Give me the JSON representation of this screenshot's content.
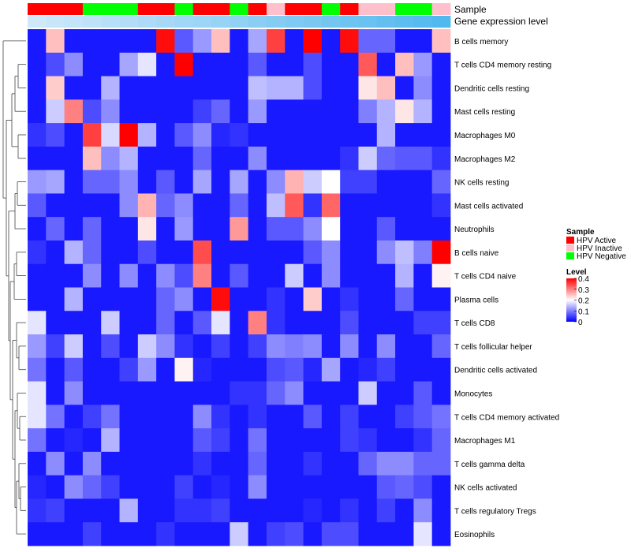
{
  "chart_data": {
    "type": "heatmap",
    "annotation_tracks": [
      "Sample",
      "Gene expression level"
    ],
    "rows": [
      "B cells memory",
      "T cells CD4 memory resting",
      "Dendritic cells resting",
      "Mast cells resting",
      "Macrophages M0",
      "Macrophages M2",
      "NK cells resting",
      "Mast cells activated",
      "Neutrophils",
      "B cells naive",
      "T cells CD4 naive",
      "Plasma cells",
      "T cells CD8",
      "T cells follicular helper",
      "Dendritic cells activated",
      "Monocytes",
      "T cells CD4 memory activated",
      "Macrophages M1",
      "T cells gamma delta",
      "NK cells activated",
      "T cells regulatory  Tregs",
      "Eosinophils"
    ],
    "sample_groups": [
      "Active",
      "Active",
      "Active",
      "Negative",
      "Negative",
      "Negative",
      "Active",
      "Active",
      "Negative",
      "Active",
      "Active",
      "Negative",
      "Active",
      "Inactive",
      "Active",
      "Active",
      "Negative",
      "Active",
      "Inactive",
      "Inactive",
      "Negative",
      "Negative",
      "Inactive"
    ],
    "expression_track": [
      0.5,
      0.52,
      0.54,
      0.56,
      0.58,
      0.6,
      0.62,
      0.64,
      0.66,
      0.68,
      0.7,
      0.72,
      0.74,
      0.76,
      0.78,
      0.8,
      0.82,
      0.84,
      0.86,
      0.88,
      0.9,
      0.92,
      0.94
    ],
    "values": [
      [
        0.02,
        0.25,
        0.02,
        0.02,
        0.02,
        0.02,
        0.02,
        0.39,
        0.07,
        0.12,
        0.25,
        0.02,
        0.13,
        0.35,
        0.02,
        0.4,
        0.02,
        0.39,
        0.08,
        0.08,
        0.02,
        0.02,
        0.25
      ],
      [
        0.02,
        0.06,
        0.11,
        0.02,
        0.02,
        0.13,
        0.18,
        0.02,
        0.4,
        0.02,
        0.02,
        0.02,
        0.07,
        0.02,
        0.02,
        0.06,
        0.02,
        0.02,
        0.33,
        0.02,
        0.25,
        0.12,
        0.02
      ],
      [
        0.02,
        0.24,
        0.02,
        0.02,
        0.14,
        0.02,
        0.02,
        0.02,
        0.02,
        0.02,
        0.02,
        0.02,
        0.15,
        0.14,
        0.14,
        0.06,
        0.02,
        0.02,
        0.22,
        0.25,
        0.02,
        0.11,
        0.02
      ],
      [
        0.02,
        0.16,
        0.3,
        0.06,
        0.11,
        0.02,
        0.02,
        0.02,
        0.02,
        0.05,
        0.08,
        0.02,
        0.12,
        0.02,
        0.02,
        0.02,
        0.02,
        0.02,
        0.1,
        0.14,
        0.22,
        0.14,
        0.02
      ],
      [
        0.04,
        0.06,
        0.02,
        0.35,
        0.17,
        0.4,
        0.14,
        0.02,
        0.07,
        0.11,
        0.03,
        0.04,
        0.02,
        0.02,
        0.02,
        0.02,
        0.02,
        0.02,
        0.02,
        0.14,
        0.02,
        0.02,
        0.02
      ],
      [
        0.02,
        0.02,
        0.02,
        0.25,
        0.11,
        0.14,
        0.02,
        0.02,
        0.02,
        0.08,
        0.02,
        0.02,
        0.11,
        0.02,
        0.02,
        0.02,
        0.02,
        0.04,
        0.16,
        0.08,
        0.07,
        0.07,
        0.04
      ],
      [
        0.12,
        0.13,
        0.02,
        0.08,
        0.08,
        0.11,
        0.02,
        0.07,
        0.02,
        0.13,
        0.02,
        0.13,
        0.02,
        0.11,
        0.26,
        0.16,
        0.2,
        0.05,
        0.05,
        0.02,
        0.02,
        0.02,
        0.08
      ],
      [
        0.07,
        0.02,
        0.02,
        0.02,
        0.02,
        0.11,
        0.26,
        0.08,
        0.11,
        0.02,
        0.02,
        0.08,
        0.02,
        0.15,
        0.33,
        0.04,
        0.32,
        0.02,
        0.02,
        0.02,
        0.02,
        0.02,
        0.04
      ],
      [
        0.02,
        0.08,
        0.02,
        0.08,
        0.02,
        0.02,
        0.22,
        0.02,
        0.12,
        0.02,
        0.02,
        0.28,
        0.02,
        0.07,
        0.07,
        0.11,
        0.2,
        0.02,
        0.02,
        0.07,
        0.02,
        0.02,
        0.02
      ],
      [
        0.04,
        0.02,
        0.14,
        0.08,
        0.02,
        0.02,
        0.06,
        0.02,
        0.02,
        0.34,
        0.02,
        0.02,
        0.02,
        0.02,
        0.02,
        0.07,
        0.11,
        0.02,
        0.02,
        0.11,
        0.15,
        0.1,
        0.4
      ],
      [
        0.02,
        0.02,
        0.02,
        0.11,
        0.02,
        0.11,
        0.02,
        0.11,
        0.06,
        0.3,
        0.02,
        0.07,
        0.02,
        0.02,
        0.16,
        0.02,
        0.11,
        0.02,
        0.02,
        0.02,
        0.14,
        0.02,
        0.21
      ],
      [
        0.02,
        0.02,
        0.14,
        0.02,
        0.02,
        0.02,
        0.02,
        0.08,
        0.11,
        0.02,
        0.39,
        0.02,
        0.02,
        0.04,
        0.02,
        0.24,
        0.02,
        0.04,
        0.02,
        0.02,
        0.08,
        0.02,
        0.02
      ],
      [
        0.18,
        0.02,
        0.02,
        0.02,
        0.16,
        0.02,
        0.02,
        0.08,
        0.02,
        0.07,
        0.18,
        0.02,
        0.3,
        0.04,
        0.02,
        0.02,
        0.02,
        0.06,
        0.02,
        0.02,
        0.02,
        0.05,
        0.05
      ],
      [
        0.12,
        0.05,
        0.16,
        0.02,
        0.06,
        0.02,
        0.16,
        0.11,
        0.04,
        0.02,
        0.05,
        0.02,
        0.05,
        0.11,
        0.1,
        0.11,
        0.02,
        0.11,
        0.02,
        0.11,
        0.02,
        0.02,
        0.08
      ],
      [
        0.09,
        0.02,
        0.07,
        0.02,
        0.02,
        0.05,
        0.12,
        0.02,
        0.21,
        0.03,
        0.02,
        0.02,
        0.02,
        0.06,
        0.07,
        0.03,
        0.13,
        0.02,
        0.03,
        0.05,
        0.02,
        0.02,
        0.02
      ],
      [
        0.18,
        0.02,
        0.11,
        0.02,
        0.02,
        0.02,
        0.02,
        0.02,
        0.02,
        0.02,
        0.02,
        0.04,
        0.04,
        0.08,
        0.11,
        0.02,
        0.02,
        0.02,
        0.16,
        0.02,
        0.02,
        0.07,
        0.02
      ],
      [
        0.18,
        0.09,
        0.02,
        0.05,
        0.09,
        0.02,
        0.02,
        0.02,
        0.02,
        0.11,
        0.04,
        0.02,
        0.04,
        0.02,
        0.02,
        0.07,
        0.02,
        0.05,
        0.02,
        0.02,
        0.05,
        0.07,
        0.09
      ],
      [
        0.09,
        0.02,
        0.03,
        0.02,
        0.14,
        0.02,
        0.02,
        0.02,
        0.02,
        0.07,
        0.05,
        0.02,
        0.09,
        0.02,
        0.02,
        0.02,
        0.02,
        0.05,
        0.04,
        0.02,
        0.02,
        0.04,
        0.08
      ],
      [
        0.02,
        0.11,
        0.02,
        0.11,
        0.02,
        0.02,
        0.02,
        0.02,
        0.02,
        0.04,
        0.02,
        0.02,
        0.08,
        0.02,
        0.02,
        0.04,
        0.02,
        0.02,
        0.08,
        0.11,
        0.11,
        0.08,
        0.08
      ],
      [
        0.03,
        0.02,
        0.11,
        0.08,
        0.05,
        0.02,
        0.02,
        0.02,
        0.05,
        0.02,
        0.03,
        0.02,
        0.11,
        0.02,
        0.02,
        0.02,
        0.02,
        0.02,
        0.02,
        0.07,
        0.08,
        0.06,
        0.02
      ],
      [
        0.04,
        0.05,
        0.02,
        0.02,
        0.02,
        0.14,
        0.02,
        0.02,
        0.04,
        0.04,
        0.05,
        0.02,
        0.02,
        0.02,
        0.02,
        0.03,
        0.02,
        0.04,
        0.02,
        0.05,
        0.02,
        0.11,
        0.02
      ],
      [
        0.02,
        0.02,
        0.02,
        0.05,
        0.02,
        0.02,
        0.02,
        0.04,
        0.02,
        0.02,
        0.02,
        0.16,
        0.02,
        0.05,
        0.06,
        0.02,
        0.06,
        0.06,
        0.02,
        0.02,
        0.02,
        0.18,
        0.02
      ]
    ],
    "value_range": [
      0,
      0.4
    ],
    "color_scale": {
      "low": "#0000ff",
      "mid": "#ffffff",
      "high": "#ff0000",
      "mid_value": 0.2
    },
    "track_label_sample": "Sample",
    "track_label_expression": "Gene expression level",
    "legend_sample": {
      "title": "Sample",
      "entries": [
        {
          "label": "HPV Active",
          "color": "#ff0000"
        },
        {
          "label": "HPV Inactive",
          "color": "#ffc0cb"
        },
        {
          "label": "HPV Negative",
          "color": "#00ff00"
        }
      ]
    },
    "legend_level": {
      "title": "Level",
      "ticks": [
        0.4,
        0.3,
        0.2,
        0.1,
        0
      ],
      "tick_labels": [
        "0.4",
        "0.3",
        "0.2",
        "0.1",
        "0"
      ]
    },
    "expression_track_colors": {
      "low": "#cfe8fa",
      "high": "#4fb8ee"
    },
    "group_colors": {
      "Active": "#ff0000",
      "Inactive": "#ffc0cb",
      "Negative": "#00ff00"
    }
  }
}
